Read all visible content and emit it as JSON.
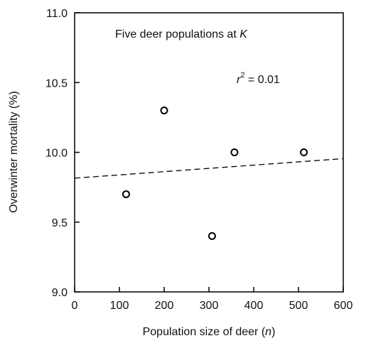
{
  "chart_data": {
    "type": "scatter",
    "title": "Five deer populations at K",
    "title_prefix": "Five deer populations at ",
    "title_italic": "K",
    "xlabel": "Population size of deer (n)",
    "xlabel_prefix": "Population size of deer (",
    "xlabel_italic": "n",
    "xlabel_suffix": ")",
    "ylabel": "Overwinter mortality (%)",
    "xlim": [
      0,
      600
    ],
    "ylim": [
      9.0,
      11.0
    ],
    "xticks": [
      0,
      100,
      200,
      300,
      400,
      500,
      600
    ],
    "xtick_labels": [
      "0",
      "100",
      "200",
      "300",
      "400",
      "500",
      "600"
    ],
    "yticks": [
      9.0,
      9.5,
      10.0,
      10.5,
      11.0
    ],
    "ytick_labels": [
      "9.0",
      "9.5",
      "10.0",
      "10.5",
      "11.0"
    ],
    "grid": false,
    "series": [
      {
        "marker": "open-circle",
        "points": [
          {
            "x": 115,
            "y": 9.7
          },
          {
            "x": 200,
            "y": 10.3
          },
          {
            "x": 307,
            "y": 9.4
          },
          {
            "x": 357,
            "y": 10.0
          },
          {
            "x": 512,
            "y": 10.0
          }
        ]
      }
    ],
    "trendline": {
      "style": "dashed",
      "x": [
        0,
        600
      ],
      "y": [
        9.815,
        9.955
      ]
    },
    "annotations": [
      {
        "text": "r² = 0.01",
        "var": "r",
        "sup": "2",
        "rest": " = 0.01"
      }
    ]
  }
}
